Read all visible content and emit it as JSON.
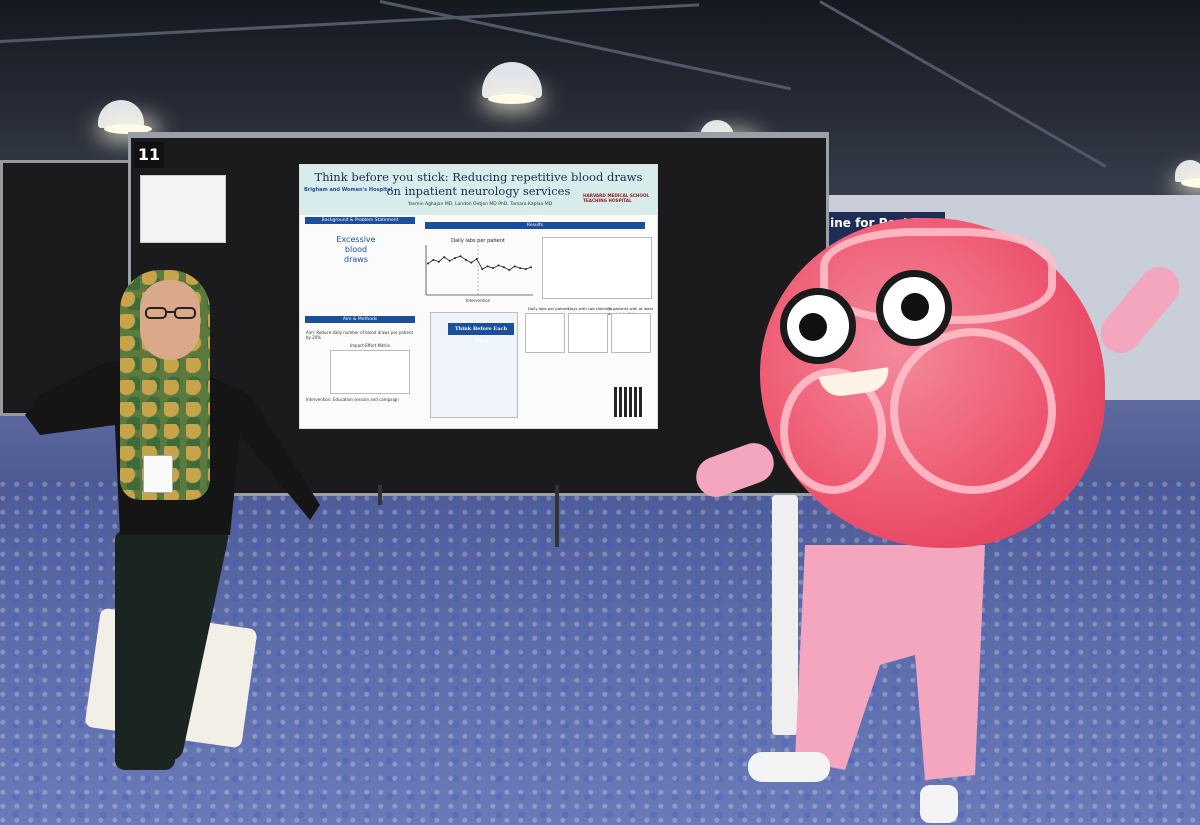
{
  "scene": {
    "board_number": "11",
    "side_sign": "line for Post Traumatic"
  },
  "poster": {
    "title": "Think before you stick: Reducing repetitive blood draws on inpatient neurology services",
    "institution_left": "Brigham and Women's Hospital",
    "institution_right": "HARVARD MEDICAL SCHOOL TEACHING HOSPITAL",
    "authors": "Yasmin Aghajan MD, Landon Oetjen MD PhD, Tamara Kaplan MD",
    "sections": {
      "background": "Background & Problem Statement",
      "results": "Results",
      "aim": "Aim & Methods"
    },
    "background_graphic": "Excessive blood draws",
    "chart_caption": "Daily labs per patient",
    "x_axis_label": "Intervention",
    "aim_text": "Aim: Reduce daily number of blood draws per patient by 20%",
    "matrix_label": "Impact-Effort Matrix",
    "intervention_text": "Intervention: Education session and campaign",
    "card_title": "Think Before Each Stick",
    "panel_labels": [
      "Daily labs per patient",
      "Days with Lab Holidays",
      "% patients with at least one lab holiday"
    ]
  },
  "colors": {
    "poster_header": "#d8ecec",
    "section_bar": "#1b4f9c",
    "mascot_pink": "#ee5670",
    "carpet_blue": "#5b6aa8"
  },
  "chart_data": {
    "type": "line",
    "title": "Daily labs per patient",
    "xlabel": "",
    "ylabel": "",
    "x": [
      1,
      2,
      3,
      4,
      5,
      6,
      7,
      8,
      9,
      10,
      11,
      12,
      13,
      14,
      15,
      16,
      17,
      18,
      19,
      20
    ],
    "series": [
      {
        "values": [
          3.2,
          3.6,
          3.4,
          3.9,
          3.5,
          3.8,
          4.0,
          3.6,
          3.3,
          3.7,
          2.6,
          2.9,
          2.7,
          3.0,
          2.8,
          2.5,
          2.9,
          2.7,
          2.6,
          2.8
        ]
      }
    ],
    "ylim": [
      0,
      5
    ]
  }
}
